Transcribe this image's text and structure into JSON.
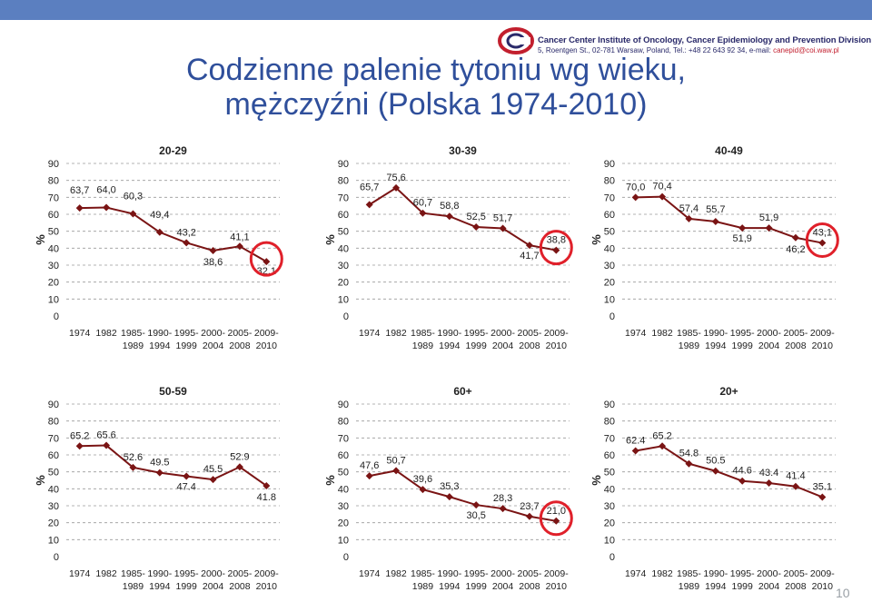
{
  "title": {
    "line1": "Codzienne palenie tytoniu wg wieku,",
    "line2": "mężczyźni (Polska 1974-2010)"
  },
  "header": {
    "institute_name": "Cancer Center Institute of Oncology, Cancer Epidemiology and Prevention Division",
    "address_text": "5, Roentgen St., 02-781 Warsaw, Poland, Tel.: +48 22 643 92 34, e-mail: ",
    "email": "canepid@coi.waw.pl"
  },
  "page_number": "10",
  "colors": {
    "line": "#7a1414",
    "marker": "#7a1414",
    "highlight_circle": "#e0202a",
    "title": "#2f4f9b",
    "band": "#5b7fc0"
  },
  "chart_data": [
    {
      "type": "line",
      "title": "20-29",
      "ylabel": "%",
      "ylim": [
        0,
        90
      ],
      "yticks": [
        "0",
        "10",
        "20",
        "30",
        "40",
        "50",
        "60",
        "70",
        "80",
        "90"
      ],
      "categories": [
        [
          "1974"
        ],
        [
          "1982"
        ],
        [
          "1985-",
          "1989"
        ],
        [
          "1990-",
          "1994"
        ],
        [
          "1995-",
          "1999"
        ],
        [
          "2000-",
          "2004"
        ],
        [
          "2005-",
          "2008"
        ],
        [
          "2009-",
          "2010"
        ]
      ],
      "values": [
        63.7,
        64.0,
        60.3,
        49.4,
        43.2,
        38.6,
        41.1,
        32.1
      ],
      "labels": [
        "63,7",
        "64,0",
        "60,3",
        "49,4",
        "43,2",
        "38,6",
        "41,1",
        "32,1"
      ],
      "highlight_last": true
    },
    {
      "type": "line",
      "title": "30-39",
      "ylabel": "%",
      "ylim": [
        0,
        90
      ],
      "yticks": [
        "0",
        "10",
        "20",
        "30",
        "40",
        "50",
        "60",
        "70",
        "80",
        "90"
      ],
      "categories": [
        [
          "1974"
        ],
        [
          "1982"
        ],
        [
          "1985-",
          "1989"
        ],
        [
          "1990-",
          "1994"
        ],
        [
          "1995-",
          "1999"
        ],
        [
          "2000-",
          "2004"
        ],
        [
          "2005-",
          "2008"
        ],
        [
          "2009-",
          "2010"
        ]
      ],
      "values": [
        65.7,
        75.6,
        60.7,
        58.8,
        52.5,
        51.7,
        41.7,
        38.8
      ],
      "labels": [
        "65,7",
        "75,6",
        "60,7",
        "58,8",
        "52,5",
        "51,7",
        "41,7",
        "38,8"
      ],
      "highlight_last": true
    },
    {
      "type": "line",
      "title": "40-49",
      "ylabel": "%",
      "ylim": [
        0,
        90
      ],
      "yticks": [
        "0",
        "10",
        "20",
        "30",
        "40",
        "50",
        "60",
        "70",
        "80",
        "90"
      ],
      "categories": [
        [
          "1974"
        ],
        [
          "1982"
        ],
        [
          "1985-",
          "1989"
        ],
        [
          "1990-",
          "1994"
        ],
        [
          "1995-",
          "1999"
        ],
        [
          "2000-",
          "2004"
        ],
        [
          "2005-",
          "2008"
        ],
        [
          "2009-",
          "2010"
        ]
      ],
      "values": [
        70.0,
        70.4,
        57.4,
        55.7,
        51.9,
        51.9,
        46.2,
        43.1
      ],
      "labels": [
        "70,0",
        "70,4",
        "57,4",
        "55,7",
        "51,9",
        "51,9",
        "46,2",
        "43,1"
      ],
      "highlight_last": true
    },
    {
      "type": "line",
      "title": "50-59",
      "ylabel": "%",
      "ylim": [
        0,
        90
      ],
      "yticks": [
        "0",
        "10",
        "20",
        "30",
        "40",
        "50",
        "60",
        "70",
        "80",
        "90"
      ],
      "categories": [
        [
          "1974"
        ],
        [
          "1982"
        ],
        [
          "1985-",
          "1989"
        ],
        [
          "1990-",
          "1994"
        ],
        [
          "1995-",
          "1999"
        ],
        [
          "2000-",
          "2004"
        ],
        [
          "2005-",
          "2008"
        ],
        [
          "2009-",
          "2010"
        ]
      ],
      "values": [
        65.2,
        65.6,
        52.6,
        49.5,
        47.4,
        45.5,
        52.9,
        41.8
      ],
      "labels": [
        "65.2",
        "65.6",
        "52.6",
        "49.5",
        "47.4",
        "45.5",
        "52.9",
        "41.8"
      ],
      "highlight_last": false
    },
    {
      "type": "line",
      "title": "60+",
      "ylabel": "%",
      "ylim": [
        0,
        90
      ],
      "yticks": [
        "0",
        "10",
        "20",
        "30",
        "40",
        "50",
        "60",
        "70",
        "80",
        "90"
      ],
      "categories": [
        [
          "1974"
        ],
        [
          "1982"
        ],
        [
          "1985-",
          "1989"
        ],
        [
          "1990-",
          "1994"
        ],
        [
          "1995-",
          "1999"
        ],
        [
          "2000-",
          "2004"
        ],
        [
          "2005-",
          "2008"
        ],
        [
          "2009-",
          "2010"
        ]
      ],
      "values": [
        47.6,
        50.7,
        39.6,
        35.3,
        30.5,
        28.3,
        23.7,
        21.0
      ],
      "labels": [
        "47,6",
        "50,7",
        "39,6",
        "35,3",
        "30,5",
        "28,3",
        "23,7",
        "21,0"
      ],
      "highlight_last": true
    },
    {
      "type": "line",
      "title": "20+",
      "ylabel": "%",
      "ylim": [
        0,
        90
      ],
      "yticks": [
        "0",
        "10",
        "20",
        "30",
        "40",
        "50",
        "60",
        "70",
        "80",
        "90"
      ],
      "categories": [
        [
          "1974"
        ],
        [
          "1982"
        ],
        [
          "1985-",
          "1989"
        ],
        [
          "1990-",
          "1994"
        ],
        [
          "1995-",
          "1999"
        ],
        [
          "2000-",
          "2004"
        ],
        [
          "2005-",
          "2008"
        ],
        [
          "2009-",
          "2010"
        ]
      ],
      "values": [
        62.4,
        65.2,
        54.8,
        50.5,
        44.6,
        43.4,
        41.4,
        35.1
      ],
      "labels": [
        "62.4",
        "65.2",
        "54.8",
        "50.5",
        "44.6",
        "43.4",
        "41.4",
        "35.1"
      ],
      "highlight_last": false
    }
  ]
}
